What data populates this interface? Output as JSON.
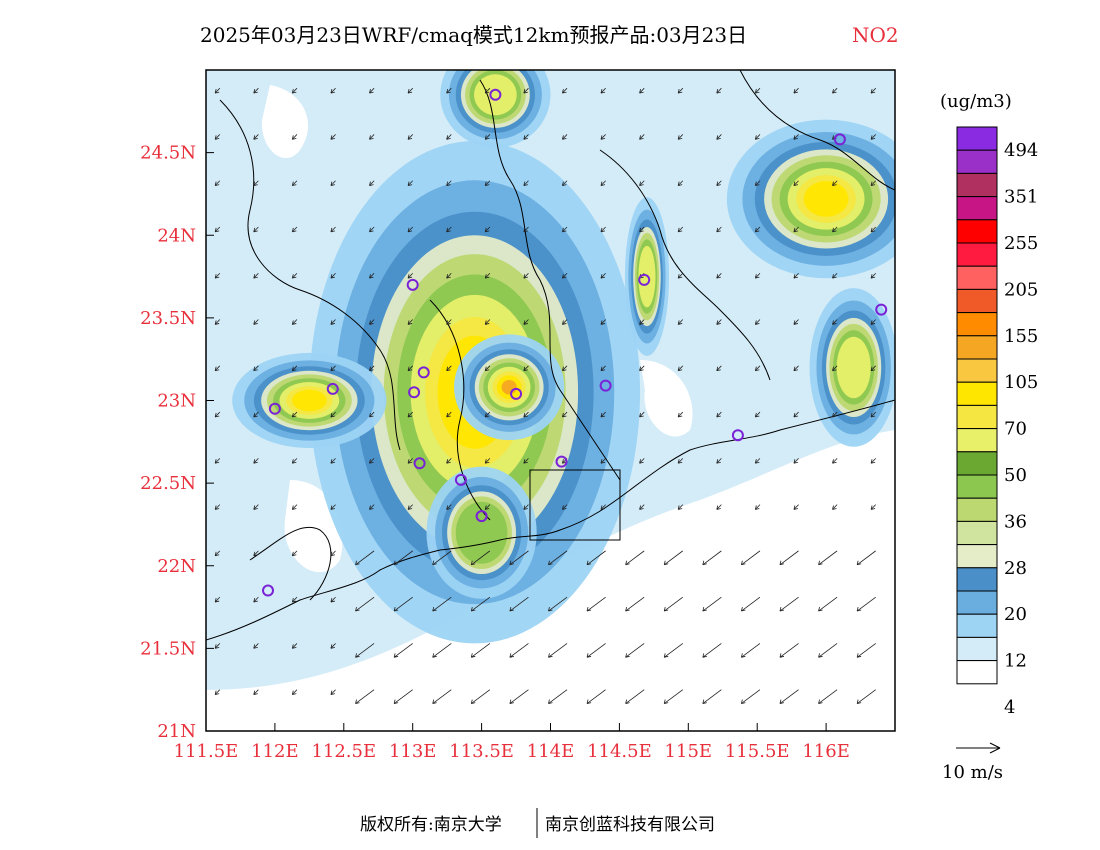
{
  "title": {
    "main": "2025年03月23日WRF/cmaq模式12km预报产品:03月23日",
    "species": "NO2"
  },
  "axes": {
    "lon_ticks": [
      "111.5E",
      "112E",
      "112.5E",
      "113E",
      "113.5E",
      "114E",
      "114.5E",
      "115E",
      "115.5E",
      "116E"
    ],
    "lat_ticks": [
      "24.5N",
      "24N",
      "23.5N",
      "23N",
      "22.5N",
      "22N",
      "21.5N",
      "21N"
    ],
    "lon_range": [
      111.5,
      116.5
    ],
    "lat_range": [
      21.0,
      25.0
    ]
  },
  "legend": {
    "unit": "(ug/m3)",
    "labels": [
      "494",
      "351",
      "255",
      "205",
      "155",
      "105",
      "70",
      "50",
      "36",
      "28",
      "20",
      "12",
      "4"
    ],
    "colors": [
      "#8a2be2",
      "#9b30c8",
      "#b03060",
      "#c71585",
      "#ff0000",
      "#ff1a40",
      "#ff6060",
      "#f05a28",
      "#ff8c00",
      "#f5a623",
      "#f9c840",
      "#ffe600",
      "#f5e642",
      "#e8f06a",
      "#6aa832",
      "#8cc850",
      "#bcd870",
      "#d0e4a0",
      "#e4ecc8",
      "#4a8fc8",
      "#6aaee0",
      "#9dd4f4",
      "#d4ecf8",
      "#ffffff"
    ]
  },
  "wind_scale": {
    "label": "10 m/s"
  },
  "footer": {
    "left": "版权所有:南京大学",
    "right": "南京创蓝科技有限公司"
  },
  "stations": [
    {
      "lon": 113.6,
      "lat": 24.85
    },
    {
      "lon": 116.1,
      "lat": 24.58
    },
    {
      "lon": 116.4,
      "lat": 23.55
    },
    {
      "lon": 114.68,
      "lat": 23.73
    },
    {
      "lon": 113.0,
      "lat": 23.7
    },
    {
      "lon": 113.08,
      "lat": 23.17
    },
    {
      "lon": 113.01,
      "lat": 23.05
    },
    {
      "lon": 113.75,
      "lat": 23.04
    },
    {
      "lon": 114.4,
      "lat": 23.09
    },
    {
      "lon": 112.0,
      "lat": 22.95
    },
    {
      "lon": 112.42,
      "lat": 23.07
    },
    {
      "lon": 113.05,
      "lat": 22.62
    },
    {
      "lon": 113.35,
      "lat": 22.52
    },
    {
      "lon": 114.08,
      "lat": 22.63
    },
    {
      "lon": 113.5,
      "lat": 22.3
    },
    {
      "lon": 115.36,
      "lat": 22.79
    },
    {
      "lon": 111.95,
      "lat": 21.85
    }
  ],
  "hotspots": [
    {
      "lon": 113.45,
      "lat": 23.05,
      "rx": 0.75,
      "ry": 0.95,
      "level": 50
    },
    {
      "lon": 113.7,
      "lat": 23.08,
      "rx": 0.25,
      "ry": 0.2,
      "level": 105
    },
    {
      "lon": 112.25,
      "lat": 23.0,
      "rx": 0.35,
      "ry": 0.18,
      "level": 50
    },
    {
      "lon": 116.0,
      "lat": 24.22,
      "rx": 0.45,
      "ry": 0.3,
      "level": 50
    },
    {
      "lon": 116.2,
      "lat": 23.2,
      "rx": 0.2,
      "ry": 0.3,
      "level": 36
    },
    {
      "lon": 113.6,
      "lat": 24.85,
      "rx": 0.25,
      "ry": 0.2,
      "level": 36
    },
    {
      "lon": 114.7,
      "lat": 23.75,
      "rx": 0.1,
      "ry": 0.3,
      "level": 36
    },
    {
      "lon": 113.5,
      "lat": 22.2,
      "rx": 0.25,
      "ry": 0.25,
      "level": 28
    }
  ]
}
